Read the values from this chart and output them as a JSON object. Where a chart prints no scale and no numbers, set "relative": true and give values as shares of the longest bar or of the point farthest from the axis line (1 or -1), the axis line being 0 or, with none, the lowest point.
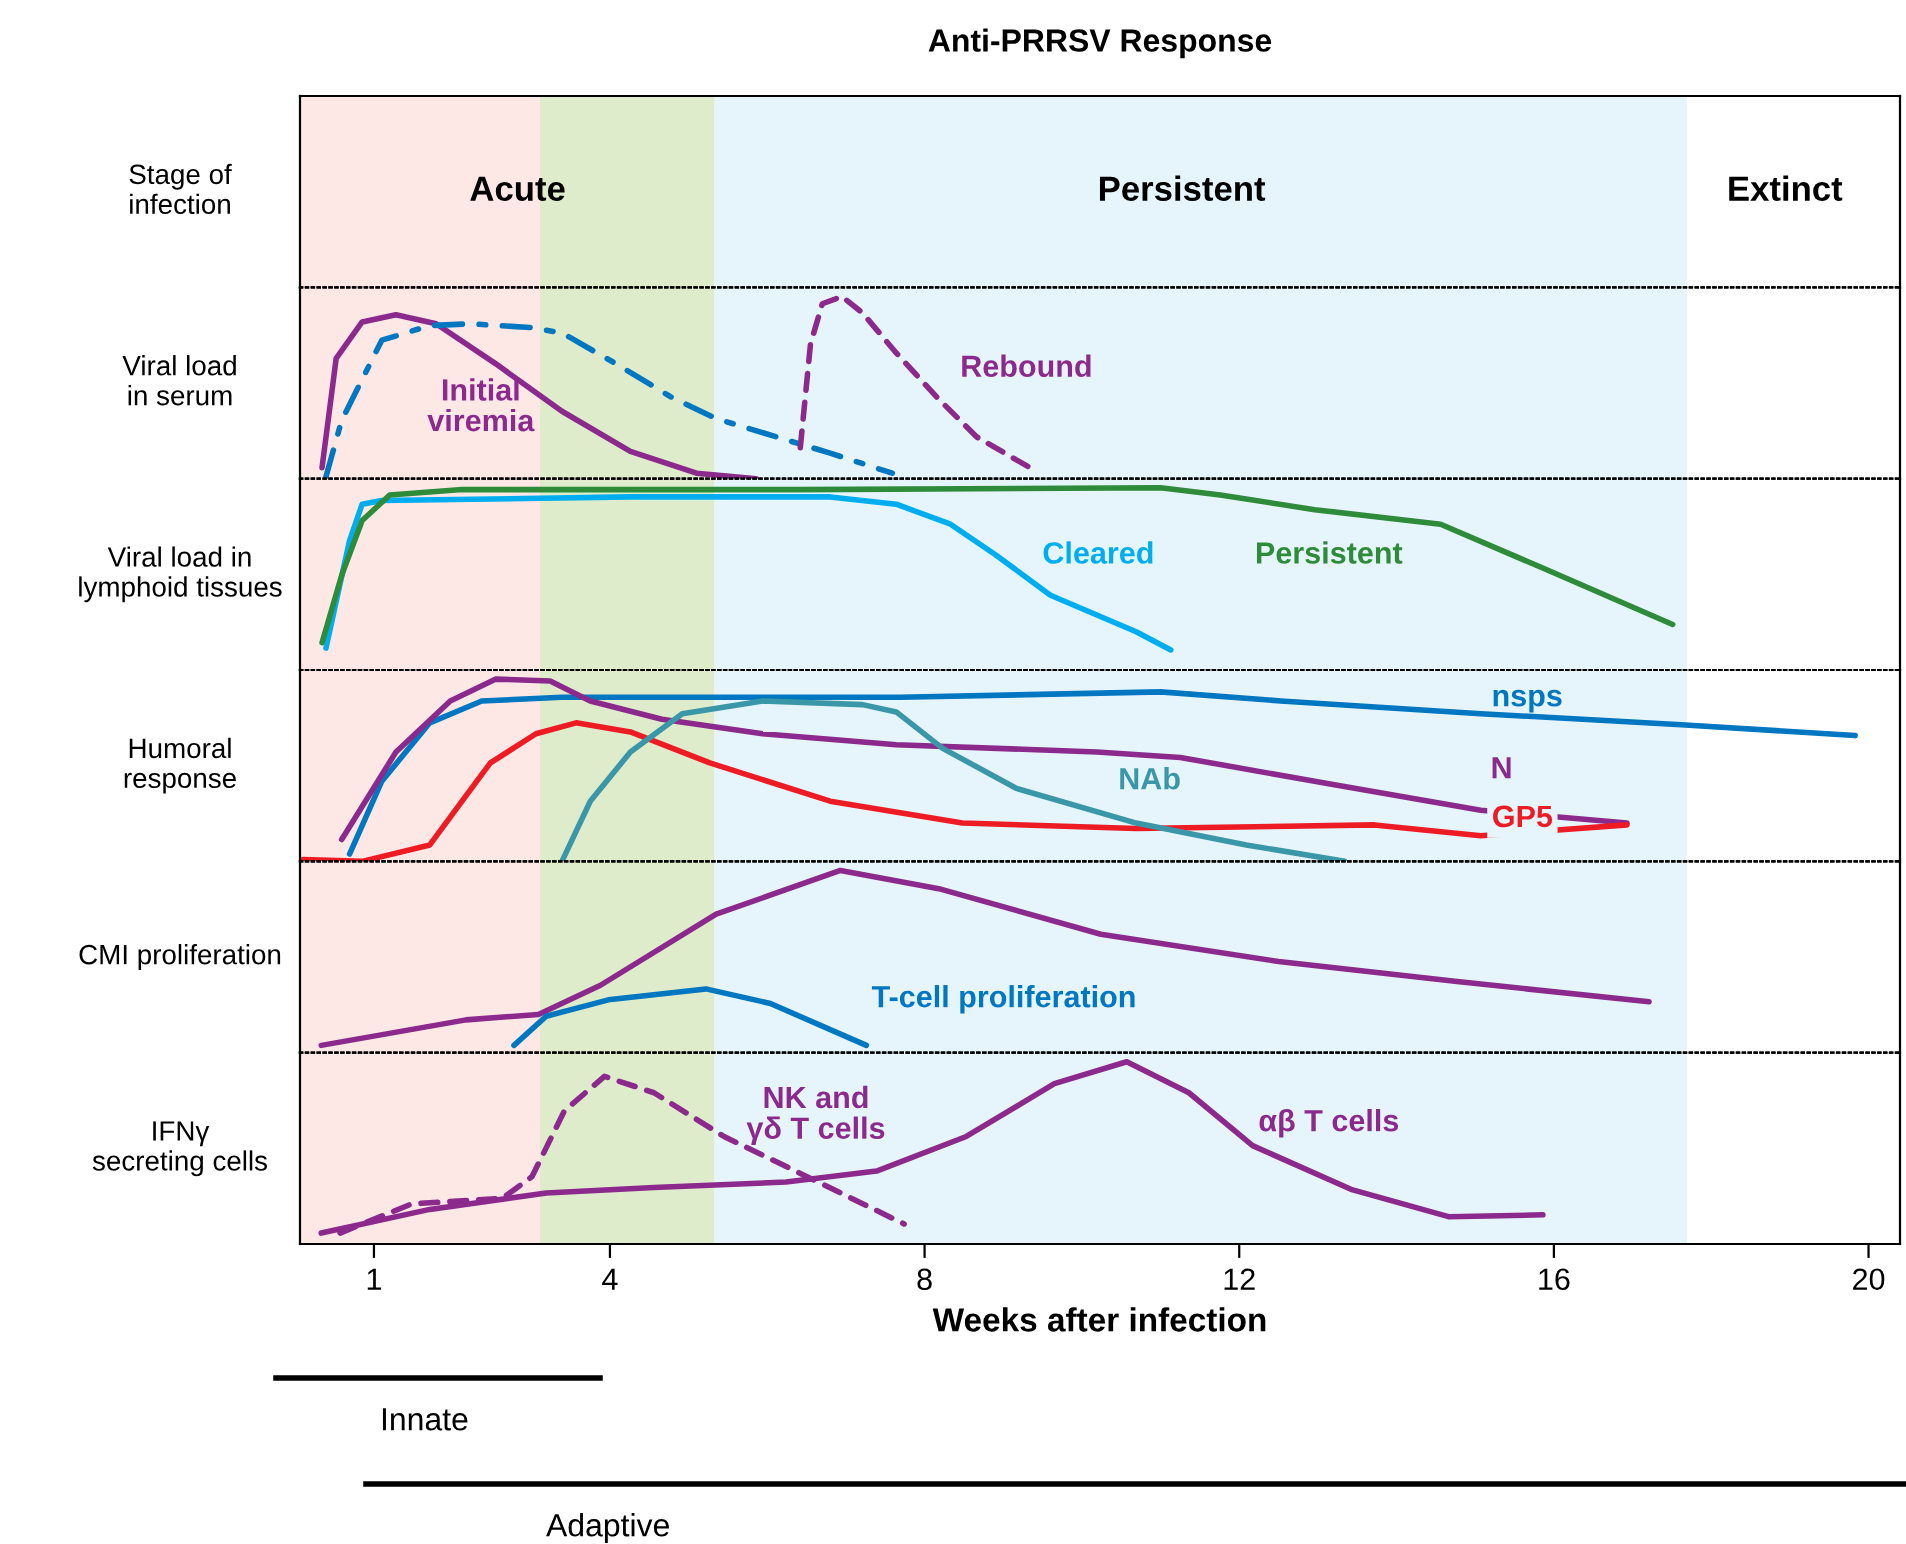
{
  "chart_data": [
    {
      "type": "other",
      "title": "Anti-PRRSV Response",
      "ylabel": "Stage of\ninfection",
      "annotations": [
        "Acute",
        "Persistent",
        "Extinct"
      ]
    },
    {
      "type": "line",
      "relative": true,
      "ylabel": "Viral load\nin serum",
      "xlim": [
        0.06,
        20.4
      ],
      "xticks": [
        1,
        4,
        8,
        12,
        16,
        20
      ],
      "tick_labels": false,
      "series": [
        {
          "name": "Initial\nviremia",
          "color": "#8b2a8c",
          "line_style": "solid",
          "x": [
            0.34,
            0.52,
            0.85,
            1.28,
            1.79,
            2.55,
            3.39,
            4.26,
            5.1,
            5.86
          ],
          "values": [
            0.06,
            0.66,
            0.86,
            0.9,
            0.85,
            0.63,
            0.37,
            0.15,
            0.03,
            0
          ]
        },
        {
          "color": "#0077c0",
          "line_style": "dashdot",
          "x": [
            0.39,
            0.59,
            1.1,
            1.71,
            2.22,
            2.98,
            3.39,
            4.08,
            4.77,
            5.35,
            6.11,
            6.8,
            7.59
          ],
          "values": [
            0.01,
            0.32,
            0.76,
            0.84,
            0.85,
            0.83,
            0.8,
            0.63,
            0.45,
            0.33,
            0.23,
            0.14,
            0.03
          ]
        },
        {
          "name": "Rebound",
          "color": "#8b2a8c",
          "line_style": "dashed",
          "x": [
            6.42,
            6.55,
            6.7,
            6.95,
            7.21,
            7.64,
            8.15,
            8.66,
            9.42
          ],
          "values": [
            0.17,
            0.74,
            0.96,
            1,
            0.91,
            0.69,
            0.45,
            0.23,
            0.04
          ]
        }
      ]
    },
    {
      "type": "line",
      "relative": true,
      "ylabel": "Viral load in\nlymphoid tissues",
      "xlim": [
        0.06,
        20.4
      ],
      "xticks": [
        1,
        4,
        8,
        12,
        16,
        20
      ],
      "tick_labels": false,
      "series": [
        {
          "name": "Cleared",
          "color": "#00aeef",
          "line_style": "solid",
          "x": [
            0.39,
            0.69,
            0.85,
            1.1,
            4.26,
            6.8,
            7.64,
            8.33,
            8.91,
            9.6,
            10.69,
            11.13
          ],
          "values": [
            0.12,
            0.71,
            0.91,
            0.93,
            0.95,
            0.95,
            0.91,
            0.8,
            0.63,
            0.41,
            0.21,
            0.11
          ]
        },
        {
          "name": "Persistent",
          "color": "#2e8b3a",
          "line_style": "solid",
          "x": [
            0.34,
            0.59,
            0.85,
            1.2,
            2.12,
            6.42,
            11.0,
            11.76,
            12.96,
            14.56,
            15.91,
            17.51
          ],
          "values": [
            0.15,
            0.52,
            0.82,
            0.96,
            0.99,
            0.99,
            1,
            0.96,
            0.88,
            0.8,
            0.55,
            0.25
          ]
        }
      ]
    },
    {
      "type": "line",
      "relative": true,
      "ylabel": "Humoral\nresponse",
      "xlim": [
        0.06,
        20.4
      ],
      "xticks": [
        1,
        4,
        8,
        12,
        16,
        20
      ],
      "tick_labels": false,
      "series": [
        {
          "name": "nsps",
          "color": "#0077c0",
          "line_style": "solid",
          "x": [
            0.69,
            1.1,
            1.71,
            2.37,
            3.39,
            7.69,
            11.0,
            12.53,
            15.07,
            17.62,
            19.83
          ],
          "values": [
            0.04,
            0.44,
            0.76,
            0.88,
            0.9,
            0.9,
            0.93,
            0.88,
            0.81,
            0.75,
            0.69
          ]
        },
        {
          "name": "N",
          "color": "#8b2a8c",
          "line_style": "solid",
          "x": [
            0.59,
            1.28,
            1.97,
            2.55,
            3.24,
            3.75,
            4.66,
            5.94,
            7.64,
            10.19,
            11.25,
            13.21,
            15.07,
            16.93
          ],
          "values": [
            0.12,
            0.6,
            0.88,
            1,
            0.99,
            0.88,
            0.78,
            0.7,
            0.64,
            0.6,
            0.57,
            0.42,
            0.28,
            0.21
          ]
        },
        {
          "name": "GP5",
          "color": "#ed1c24",
          "line_style": "solid",
          "x": [
            0.1,
            0.85,
            1.71,
            2.12,
            2.48,
            3.06,
            3.57,
            4.26,
            5.27,
            6.8,
            8.48,
            10.69,
            13.72,
            15.07,
            16.93
          ],
          "values": [
            0.01,
            0,
            0.09,
            0.33,
            0.54,
            0.7,
            0.76,
            0.71,
            0.54,
            0.33,
            0.21,
            0.18,
            0.2,
            0.14,
            0.2
          ]
        },
        {
          "name": "NAb",
          "color": "#3a97a8",
          "line_style": "solid",
          "x": [
            3.39,
            3.75,
            4.26,
            4.92,
            5.94,
            7.21,
            7.64,
            8.23,
            9.17,
            10.69,
            12.09,
            13.34
          ],
          "values": [
            0,
            0.33,
            0.6,
            0.81,
            0.88,
            0.86,
            0.82,
            0.62,
            0.4,
            0.21,
            0.09,
            0
          ]
        }
      ]
    },
    {
      "type": "line",
      "relative": true,
      "ylabel": "CMI proliferation",
      "xlim": [
        0.06,
        20.4
      ],
      "xticks": [
        1,
        4,
        8,
        12,
        16,
        20
      ],
      "tick_labels": false,
      "series": [
        {
          "color": "#8b2a8c",
          "line_style": "solid",
          "x": [
            0.33,
            2.17,
            3.09,
            3.88,
            5.35,
            6.93,
            8.18,
            10.24,
            12.5,
            14.77,
            17.21
          ],
          "values": [
            0.04,
            0.18,
            0.21,
            0.37,
            0.76,
            1,
            0.9,
            0.65,
            0.5,
            0.39,
            0.28
          ]
        },
        {
          "name": "T-cell proliferation",
          "color": "#0077c0",
          "line_style": "solid",
          "x": [
            2.78,
            3.19,
            3.98,
            5.22,
            6.04,
            7.26
          ],
          "values": [
            0.04,
            0.2,
            0.29,
            0.35,
            0.27,
            0.04
          ]
        }
      ]
    },
    {
      "type": "line",
      "relative": true,
      "ylabel": "IFNγ\nsecreting cells",
      "xlabel": "Weeks after infection",
      "xlim": [
        0.06,
        20.4
      ],
      "xticks": [
        1,
        4,
        8,
        12,
        16,
        20
      ],
      "tick_labels": "x",
      "bands": [
        {
          "axis": "x",
          "from": 0.06,
          "to": 3.11,
          "color": "#fde8e6"
        },
        {
          "axis": "x",
          "from": 3.11,
          "to": 5.33,
          "color": "#dfeccb"
        },
        {
          "axis": "x",
          "from": 5.33,
          "to": 17.69,
          "color": "#e6f4fb"
        }
      ],
      "series": [
        {
          "name": "αβ T cells",
          "color": "#8b2a8c",
          "line_style": "solid",
          "x": [
            0.33,
            1.71,
            3.19,
            4.56,
            6.24,
            7.39,
            8.53,
            9.65,
            10.57,
            11.36,
            12.17,
            13.42,
            14.66,
            15.86
          ],
          "values": [
            0.06,
            0.19,
            0.28,
            0.31,
            0.34,
            0.4,
            0.59,
            0.88,
            1,
            0.83,
            0.54,
            0.3,
            0.15,
            0.16
          ]
        },
        {
          "name": "NK and\nγδ T cells",
          "color": "#8b2a8c",
          "line_style": "dashed",
          "x": [
            0.57,
            1.48,
            2.63,
            3.01,
            3.42,
            3.93,
            4.56,
            5.45,
            6.6,
            7.74
          ],
          "values": [
            0.06,
            0.22,
            0.25,
            0.37,
            0.73,
            0.92,
            0.83,
            0.59,
            0.35,
            0.11
          ]
        }
      ],
      "annotations": [
        "Innate",
        "Adaptive"
      ]
    }
  ]
}
